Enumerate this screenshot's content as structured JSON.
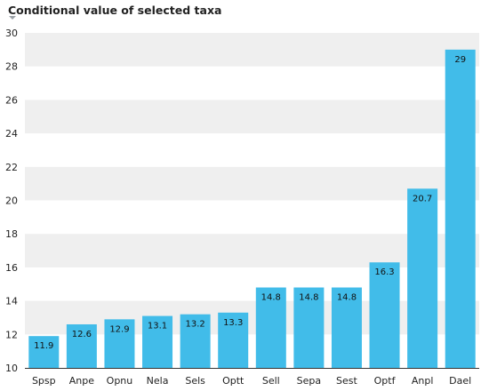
{
  "chart_data": {
    "type": "bar",
    "title": "Conditional value of selected taxa",
    "categories": [
      "Spsp",
      "Anpe",
      "Opnu",
      "Nela",
      "Sels",
      "Optt",
      "Sell",
      "Sepa",
      "Sest",
      "Optf",
      "Anpl",
      "Dael"
    ],
    "values": [
      11.9,
      12.6,
      12.9,
      13.1,
      13.2,
      13.3,
      14.8,
      14.8,
      14.8,
      16.3,
      20.7,
      29
    ],
    "data_labels": [
      "11.9",
      "12.6",
      "12.9",
      "13.1",
      "13.2",
      "13.3",
      "14.8",
      "14.8",
      "14.8",
      "16.3",
      "20.7",
      "29"
    ],
    "ylim": [
      10,
      30
    ],
    "yticks": [
      10,
      12,
      14,
      16,
      18,
      20,
      22,
      24,
      26,
      28,
      30
    ],
    "xlabel": "",
    "ylabel": "",
    "grid": "alternating horizontal bands",
    "legend": "none",
    "colors": {
      "bar": "#41bce9",
      "band": "#efefef",
      "axis": "#333333"
    }
  }
}
